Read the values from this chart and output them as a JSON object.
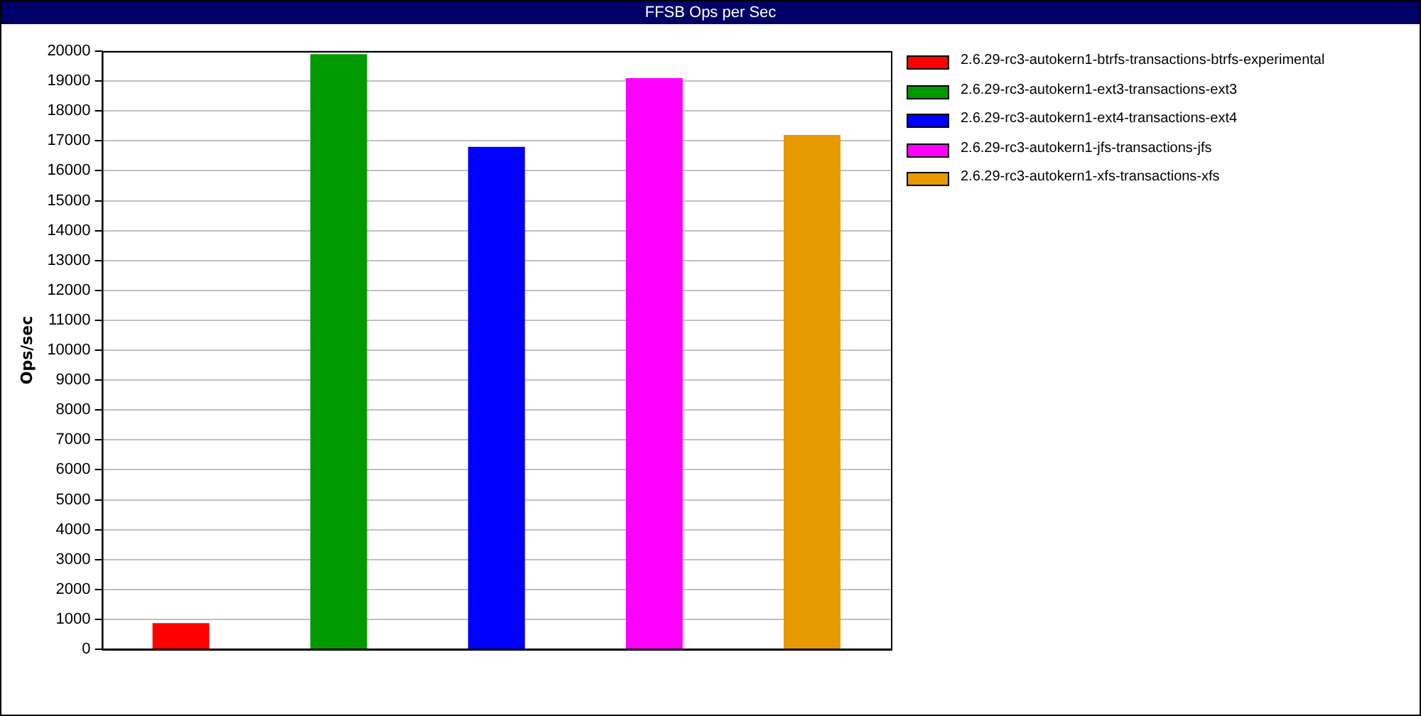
{
  "chart_data": {
    "type": "bar",
    "title": "FFSB Ops per Sec",
    "ylabel": "Ops/sec",
    "categories": [
      null,
      null,
      null,
      null,
      null
    ],
    "series": [
      {
        "name": "2.6.29-rc3-autokern1-btrfs-transactions-btrfs-experimental",
        "color": "#ff0000",
        "values": [
          870,
          null,
          null,
          null,
          null
        ]
      },
      {
        "name": "2.6.29-rc3-autokern1-ext3-transactions-ext3",
        "color": "#009900",
        "values": [
          null,
          19900,
          null,
          null,
          null
        ]
      },
      {
        "name": "2.6.29-rc3-autokern1-ext4-transactions-ext4",
        "color": "#0000ff",
        "values": [
          null,
          null,
          16800,
          null,
          null
        ]
      },
      {
        "name": "2.6.29-rc3-autokern1-jfs-transactions-jfs",
        "color": "#ff00ff",
        "values": [
          null,
          null,
          null,
          19100,
          null
        ]
      },
      {
        "name": "2.6.29-rc3-autokern1-xfs-transactions-xfs",
        "color": "#e69900",
        "values": [
          null,
          null,
          null,
          null,
          17200
        ]
      }
    ],
    "ylim": [
      0,
      20000
    ],
    "yticks": [
      0,
      1000,
      2000,
      3000,
      4000,
      5000,
      6000,
      7000,
      8000,
      9000,
      10000,
      11000,
      12000,
      13000,
      14000,
      15000,
      16000,
      17000,
      18000,
      19000,
      20000
    ],
    "grid": "y",
    "legend": "top right"
  }
}
